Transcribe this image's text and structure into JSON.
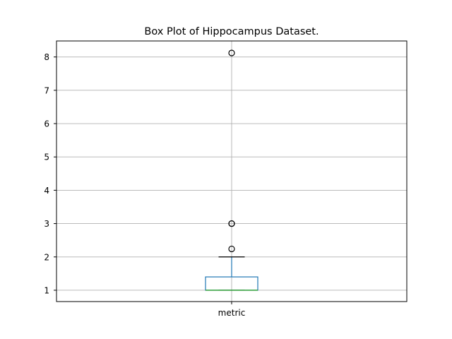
{
  "chart_data": {
    "type": "box",
    "title": "Box Plot of Hippocampus Dataset.",
    "xlabel": "",
    "ylabel": "",
    "categories": [
      "metric"
    ],
    "ylim": [
      0.66,
      8.48
    ],
    "yticks": [
      1,
      2,
      3,
      4,
      5,
      6,
      7,
      8
    ],
    "grid": true,
    "boxes": [
      {
        "name": "metric",
        "whisker_low": 1.0,
        "q1": 1.0,
        "median": 1.0,
        "q3": 1.4,
        "whisker_high": 2.0,
        "outliers": [
          2.24,
          3.0,
          3.0,
          8.12
        ]
      }
    ],
    "colors": {
      "box": "#1f77b4",
      "median": "#2ca02c",
      "whisker_cap": "#000000",
      "grid": "#b0b0b0",
      "outlier_edge": "#000000"
    }
  }
}
